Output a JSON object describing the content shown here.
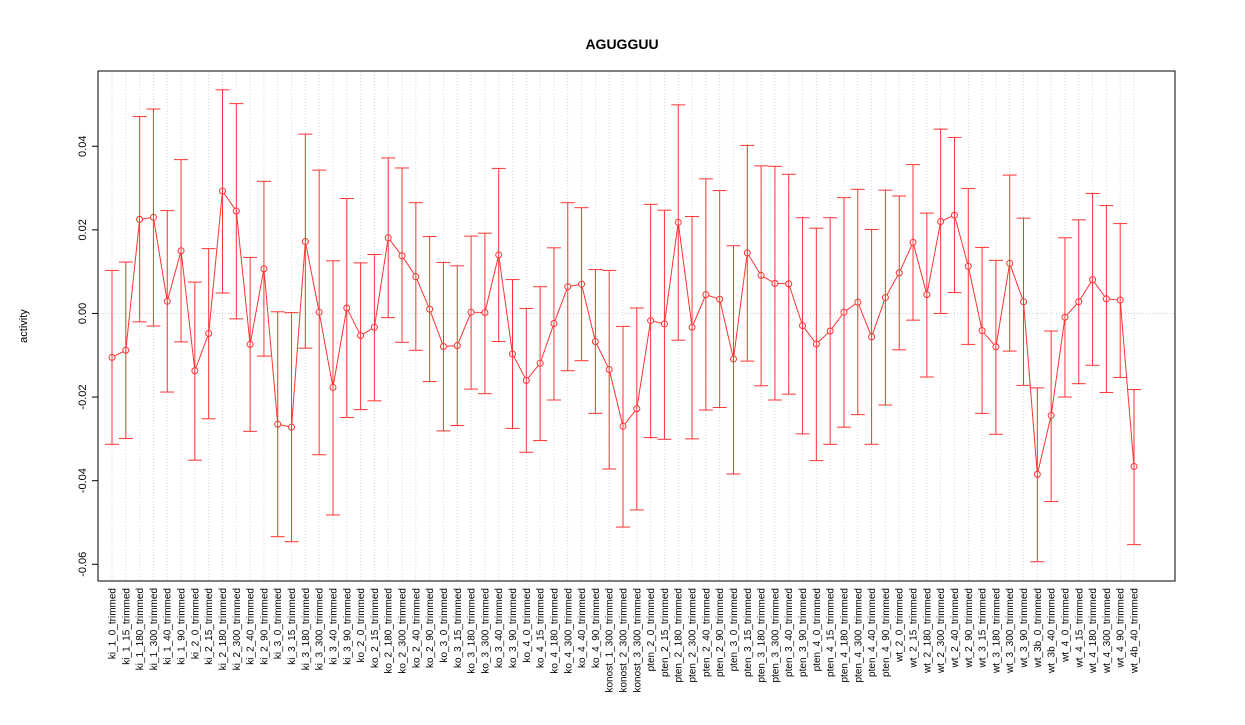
{
  "chart_data": {
    "type": "line",
    "title": "AGUGGUU",
    "xlabel": "",
    "ylabel": "activity",
    "ylim": [
      -0.064,
      0.058
    ],
    "yticks": [
      -0.06,
      -0.04,
      -0.02,
      0.0,
      0.02,
      0.04
    ],
    "ytick_labels": [
      "-0.06",
      "-0.04",
      "-0.02",
      "0.00",
      "0.02",
      "0.04"
    ],
    "grid": "vertical dotted at each category; horizontal dotted at 0",
    "error_bars": true,
    "series_color": "#ff3333",
    "categories": [
      "ki_1_0_trimmed",
      "ki_1_15_trimmed",
      "ki_1_180_trimmed",
      "ki_1_300_trimmed",
      "ki_1_40_trimmed",
      "ki_1_90_trimmed",
      "ki_2_0_trimmed",
      "ki_2_15_trimmed",
      "ki_2_180_trimmed",
      "ki_2_300_trimmed",
      "ki_2_40_trimmed",
      "ki_2_90_trimmed",
      "ki_3_0_trimmed",
      "ki_3_15_trimmed",
      "ki_3_180_trimmed",
      "ki_3_300_trimmed",
      "ki_3_40_trimmed",
      "ki_3_90_trimmed",
      "ko_2_0_trimmed",
      "ko_2_15_trimmed",
      "ko_2_180_trimmed",
      "ko_2_300_trimmed",
      "ko_2_40_trimmed",
      "ko_2_90_trimmed",
      "ko_3_0_trimmed",
      "ko_3_15_trimmed",
      "ko_3_180_trimmed",
      "ko_3_300_trimmed",
      "ko_3_40_trimmed",
      "ko_3_90_trimmed",
      "ko_4_0_trimmed",
      "ko_4_15_trimmed",
      "ko_4_180_trimmed",
      "ko_4_300_trimmed",
      "ko_4_40_trimmed",
      "ko_4_90_trimmed",
      "konost_1_300_trimmed",
      "konost_2_300_trimmed",
      "konost_3_300_trimmed",
      "pten_2_0_trimmed",
      "pten_2_15_trimmed",
      "pten_2_180_trimmed",
      "pten_2_300_trimmed",
      "pten_2_40_trimmed",
      "pten_2_90_trimmed",
      "pten_3_0_trimmed",
      "pten_3_15_trimmed",
      "pten_3_180_trimmed",
      "pten_3_300_trimmed",
      "pten_3_40_trimmed",
      "pten_3_90_trimmed",
      "pten_4_0_trimmed",
      "pten_4_15_trimmed",
      "pten_4_180_trimmed",
      "pten_4_300_trimmed",
      "pten_4_40_trimmed",
      "pten_4_90_trimmed",
      "wt_2_0_trimmed",
      "wt_2_15_trimmed",
      "wt_2_180_trimmed",
      "wt_2_300_trimmed",
      "wt_2_40_trimmed",
      "wt_2_90_trimmed",
      "wt_3_15_trimmed",
      "wt_3_180_trimmed",
      "wt_3_300_trimmed",
      "wt_3_90_trimmed",
      "wt_3b_0_trimmed",
      "wt_3b_40_trimmed",
      "wt_4_0_trimmed",
      "wt_4_15_trimmed",
      "wt_4_180_trimmed",
      "wt_4_300_trimmed",
      "wt_4_90_trimmed",
      "wt_4b_40_trimmed"
    ],
    "values": [
      -0.0105,
      -0.0088,
      0.0225,
      0.023,
      0.0029,
      0.015,
      -0.0137,
      -0.0048,
      0.0293,
      0.0245,
      -0.0074,
      0.0107,
      -0.0265,
      -0.0272,
      0.0172,
      0.0003,
      -0.0177,
      0.0013,
      -0.0053,
      -0.0033,
      0.0181,
      0.0138,
      0.0088,
      0.001,
      -0.0079,
      -0.0077,
      0.0003,
      0.0002,
      0.014,
      -0.0097,
      -0.016,
      -0.0119,
      -0.0024,
      0.0064,
      0.007,
      -0.0067,
      -0.0134,
      -0.027,
      -0.0228,
      -0.0017,
      -0.0025,
      0.0218,
      -0.0033,
      0.0045,
      0.0034,
      -0.0109,
      0.0145,
      0.0091,
      0.0072,
      0.0071,
      -0.0029,
      -0.0073,
      -0.0042,
      0.0003,
      0.0027,
      -0.0056,
      0.0038,
      0.0097,
      0.017,
      0.0045,
      0.022,
      0.0235,
      0.0113,
      -0.0041,
      -0.008,
      0.012,
      0.0028,
      -0.0385,
      -0.0244,
      -0.0009,
      0.0028,
      0.0081,
      0.0035,
      0.0032,
      -0.0366
    ],
    "upper": [
      0.0103,
      0.0123,
      0.0471,
      0.0489,
      0.0246,
      0.0368,
      0.0075,
      0.0155,
      0.0535,
      0.0502,
      0.0134,
      0.0316,
      0.0004,
      0.0002,
      0.0429,
      0.0343,
      0.0126,
      0.0275,
      0.0121,
      0.0141,
      0.0372,
      0.0348,
      0.0265,
      0.0184,
      0.0122,
      0.0114,
      0.0185,
      0.0192,
      0.0347,
      0.0081,
      0.0012,
      0.0064,
      0.0157,
      0.0265,
      0.0253,
      0.0105,
      0.0103,
      -0.0031,
      0.0013,
      0.0261,
      0.0247,
      0.0499,
      0.0232,
      0.0322,
      0.0294,
      0.0162,
      0.0402,
      0.0353,
      0.0352,
      0.0333,
      0.0229,
      0.0204,
      0.0229,
      0.0277,
      0.0297,
      0.0201,
      0.0295,
      0.0281,
      0.0356,
      0.024,
      0.0441,
      0.0421,
      0.0299,
      0.0158,
      0.0127,
      0.0331,
      0.0228,
      -0.0178,
      -0.0042,
      0.0181,
      0.0224,
      0.0287,
      0.0258,
      0.0215,
      -0.0182
    ],
    "lower": [
      -0.0313,
      -0.0299,
      -0.002,
      -0.003,
      -0.0188,
      -0.0068,
      -0.0351,
      -0.0252,
      0.0049,
      -0.0013,
      -0.0282,
      -0.0102,
      -0.0534,
      -0.0546,
      -0.0083,
      -0.0338,
      -0.0482,
      -0.0249,
      -0.023,
      -0.0209,
      -0.001,
      -0.0069,
      -0.0088,
      -0.0163,
      -0.0281,
      -0.0268,
      -0.0181,
      -0.0192,
      -0.0067,
      -0.0275,
      -0.0332,
      -0.0304,
      -0.0207,
      -0.0137,
      -0.0113,
      -0.0239,
      -0.0372,
      -0.0511,
      -0.047,
      -0.0297,
      -0.0301,
      -0.0064,
      -0.03,
      -0.0231,
      -0.0225,
      -0.0384,
      -0.0114,
      -0.0173,
      -0.0207,
      -0.0193,
      -0.0288,
      -0.0352,
      -0.0313,
      -0.0272,
      -0.0242,
      -0.0313,
      -0.0219,
      -0.0087,
      -0.0016,
      -0.0152,
      0.0,
      0.005,
      -0.0074,
      -0.0239,
      -0.0289,
      -0.009,
      -0.0172,
      -0.0594,
      -0.045,
      -0.02,
      -0.0168,
      -0.0124,
      -0.0189,
      -0.0153,
      -0.0553
    ]
  }
}
